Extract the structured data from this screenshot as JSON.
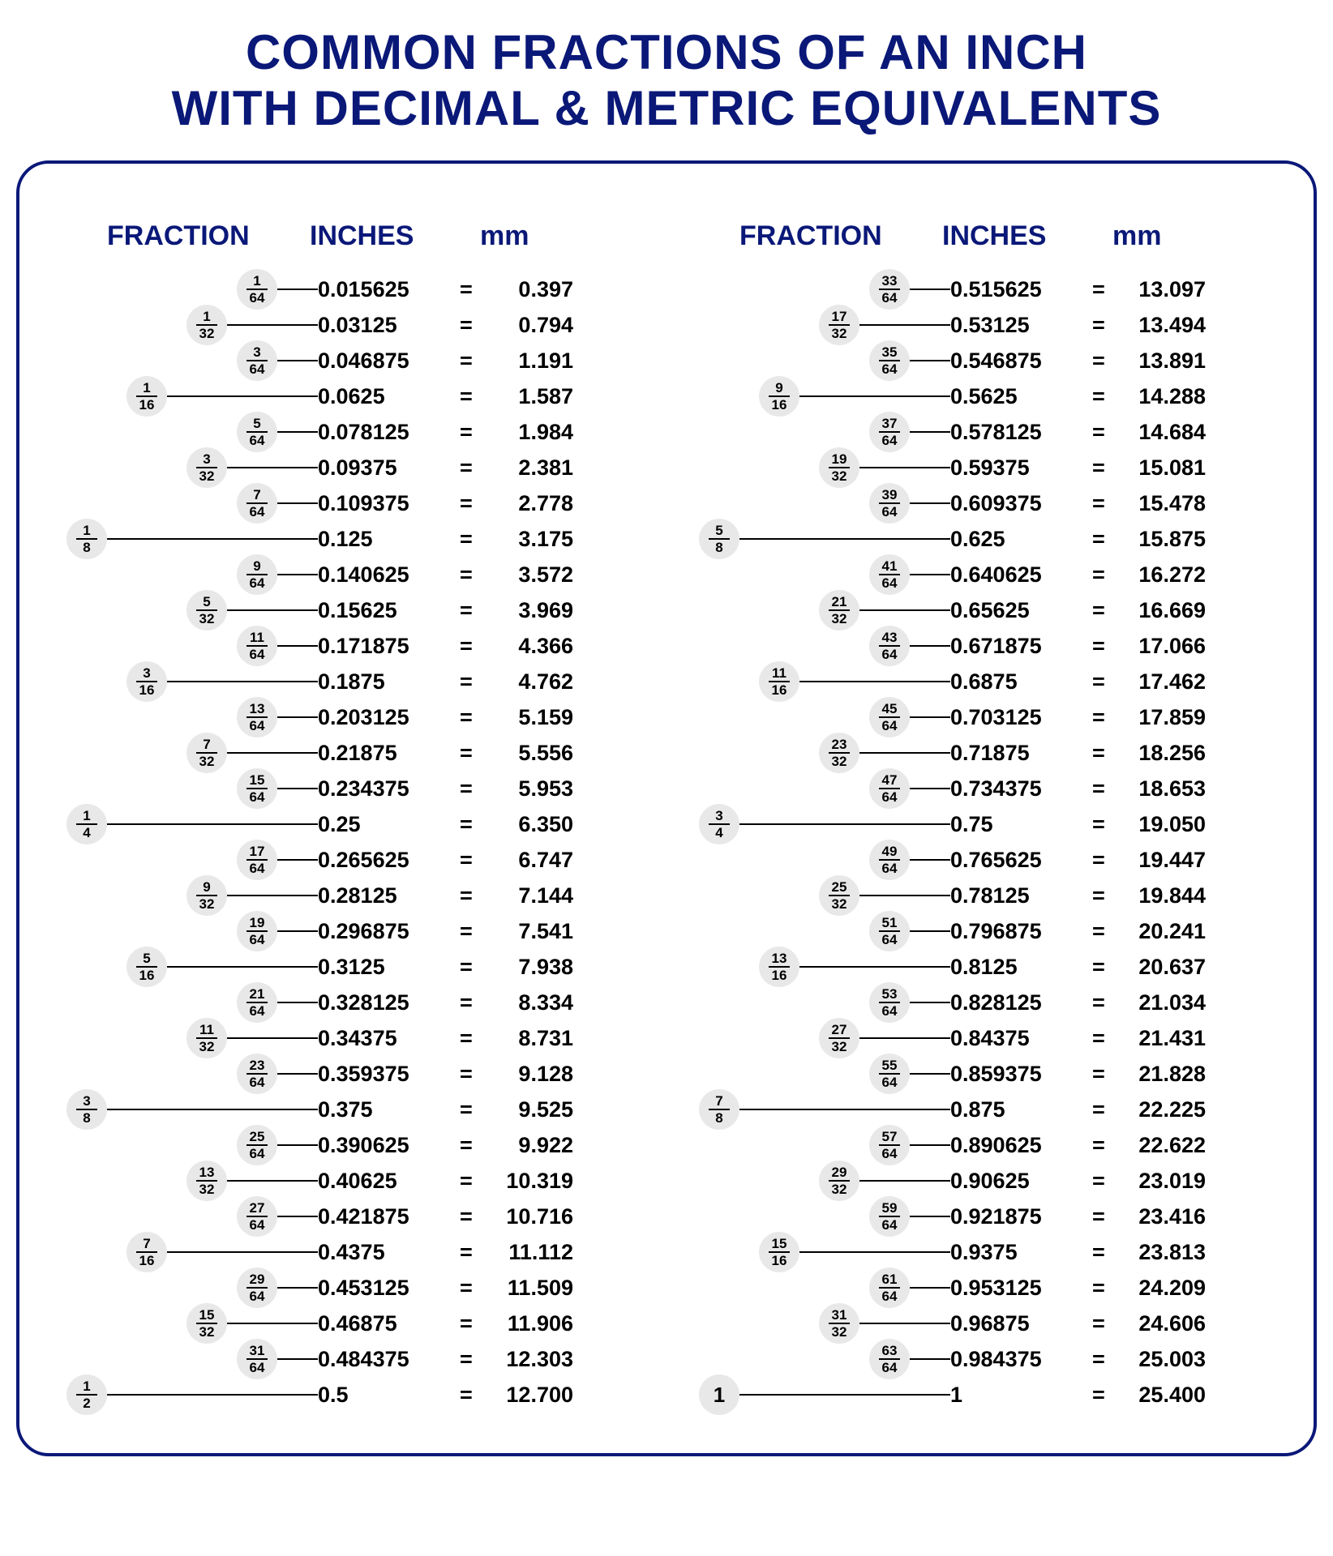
{
  "title_line1": "COMMON FRACTIONS OF AN INCH",
  "title_line2": "WITH DECIMAL & METRIC EQUIVALENTS",
  "headers": {
    "fraction": "FRACTION",
    "inches": "INCHES",
    "mm": "mm"
  },
  "colors": {
    "brand": "#0a1878",
    "pill_bg": "#e8e8e8",
    "text": "#000000",
    "bg": "#ffffff"
  },
  "columns": [
    {
      "rows": [
        {
          "p8": null,
          "p16": null,
          "p32": null,
          "p64": [
            1,
            64
          ],
          "inches": "0.015625",
          "mm": "0.397"
        },
        {
          "p8": null,
          "p16": null,
          "p32": [
            1,
            32
          ],
          "p64": null,
          "inches": "0.03125",
          "mm": "0.794"
        },
        {
          "p8": null,
          "p16": null,
          "p32": null,
          "p64": [
            3,
            64
          ],
          "inches": "0.046875",
          "mm": "1.191"
        },
        {
          "p8": null,
          "p16": [
            1,
            16
          ],
          "p32": null,
          "p64": null,
          "inches": "0.0625",
          "mm": "1.587"
        },
        {
          "p8": null,
          "p16": null,
          "p32": null,
          "p64": [
            5,
            64
          ],
          "inches": "0.078125",
          "mm": "1.984"
        },
        {
          "p8": null,
          "p16": null,
          "p32": [
            3,
            32
          ],
          "p64": null,
          "inches": "0.09375",
          "mm": "2.381"
        },
        {
          "p8": null,
          "p16": null,
          "p32": null,
          "p64": [
            7,
            64
          ],
          "inches": "0.109375",
          "mm": "2.778"
        },
        {
          "p8": [
            1,
            8
          ],
          "p16": null,
          "p32": null,
          "p64": null,
          "inches": "0.125",
          "mm": "3.175"
        },
        {
          "p8": null,
          "p16": null,
          "p32": null,
          "p64": [
            9,
            64
          ],
          "inches": "0.140625",
          "mm": "3.572"
        },
        {
          "p8": null,
          "p16": null,
          "p32": [
            5,
            32
          ],
          "p64": null,
          "inches": "0.15625",
          "mm": "3.969"
        },
        {
          "p8": null,
          "p16": null,
          "p32": null,
          "p64": [
            11,
            64
          ],
          "inches": "0.171875",
          "mm": "4.366"
        },
        {
          "p8": null,
          "p16": [
            3,
            16
          ],
          "p32": null,
          "p64": null,
          "inches": "0.1875",
          "mm": "4.762"
        },
        {
          "p8": null,
          "p16": null,
          "p32": null,
          "p64": [
            13,
            64
          ],
          "inches": "0.203125",
          "mm": "5.159"
        },
        {
          "p8": null,
          "p16": null,
          "p32": [
            7,
            32
          ],
          "p64": null,
          "inches": "0.21875",
          "mm": "5.556"
        },
        {
          "p8": null,
          "p16": null,
          "p32": null,
          "p64": [
            15,
            64
          ],
          "inches": "0.234375",
          "mm": "5.953"
        },
        {
          "p8": [
            1,
            4
          ],
          "p16": null,
          "p32": null,
          "p64": null,
          "inches": "0.25",
          "mm": "6.350"
        },
        {
          "p8": null,
          "p16": null,
          "p32": null,
          "p64": [
            17,
            64
          ],
          "inches": "0.265625",
          "mm": "6.747"
        },
        {
          "p8": null,
          "p16": null,
          "p32": [
            9,
            32
          ],
          "p64": null,
          "inches": "0.28125",
          "mm": "7.144"
        },
        {
          "p8": null,
          "p16": null,
          "p32": null,
          "p64": [
            19,
            64
          ],
          "inches": "0.296875",
          "mm": "7.541"
        },
        {
          "p8": null,
          "p16": [
            5,
            16
          ],
          "p32": null,
          "p64": null,
          "inches": "0.3125",
          "mm": "7.938"
        },
        {
          "p8": null,
          "p16": null,
          "p32": null,
          "p64": [
            21,
            64
          ],
          "inches": "0.328125",
          "mm": "8.334"
        },
        {
          "p8": null,
          "p16": null,
          "p32": [
            11,
            32
          ],
          "p64": null,
          "inches": "0.34375",
          "mm": "8.731"
        },
        {
          "p8": null,
          "p16": null,
          "p32": null,
          "p64": [
            23,
            64
          ],
          "inches": "0.359375",
          "mm": "9.128"
        },
        {
          "p8": [
            3,
            8
          ],
          "p16": null,
          "p32": null,
          "p64": null,
          "inches": "0.375",
          "mm": "9.525"
        },
        {
          "p8": null,
          "p16": null,
          "p32": null,
          "p64": [
            25,
            64
          ],
          "inches": "0.390625",
          "mm": "9.922"
        },
        {
          "p8": null,
          "p16": null,
          "p32": [
            13,
            32
          ],
          "p64": null,
          "inches": "0.40625",
          "mm": "10.319"
        },
        {
          "p8": null,
          "p16": null,
          "p32": null,
          "p64": [
            27,
            64
          ],
          "inches": "0.421875",
          "mm": "10.716"
        },
        {
          "p8": null,
          "p16": [
            7,
            16
          ],
          "p32": null,
          "p64": null,
          "inches": "0.4375",
          "mm": "11.112"
        },
        {
          "p8": null,
          "p16": null,
          "p32": null,
          "p64": [
            29,
            64
          ],
          "inches": "0.453125",
          "mm": "11.509"
        },
        {
          "p8": null,
          "p16": null,
          "p32": [
            15,
            32
          ],
          "p64": null,
          "inches": "0.46875",
          "mm": "11.906"
        },
        {
          "p8": null,
          "p16": null,
          "p32": null,
          "p64": [
            31,
            64
          ],
          "inches": "0.484375",
          "mm": "12.303"
        },
        {
          "p8": [
            1,
            2
          ],
          "p16": null,
          "p32": null,
          "p64": null,
          "inches": "0.5",
          "mm": "12.700"
        }
      ]
    },
    {
      "rows": [
        {
          "p8": null,
          "p16": null,
          "p32": null,
          "p64": [
            33,
            64
          ],
          "inches": "0.515625",
          "mm": "13.097"
        },
        {
          "p8": null,
          "p16": null,
          "p32": [
            17,
            32
          ],
          "p64": null,
          "inches": "0.53125",
          "mm": "13.494"
        },
        {
          "p8": null,
          "p16": null,
          "p32": null,
          "p64": [
            35,
            64
          ],
          "inches": "0.546875",
          "mm": "13.891"
        },
        {
          "p8": null,
          "p16": [
            9,
            16
          ],
          "p32": null,
          "p64": null,
          "inches": "0.5625",
          "mm": "14.288"
        },
        {
          "p8": null,
          "p16": null,
          "p32": null,
          "p64": [
            37,
            64
          ],
          "inches": "0.578125",
          "mm": "14.684"
        },
        {
          "p8": null,
          "p16": null,
          "p32": [
            19,
            32
          ],
          "p64": null,
          "inches": "0.59375",
          "mm": "15.081"
        },
        {
          "p8": null,
          "p16": null,
          "p32": null,
          "p64": [
            39,
            64
          ],
          "inches": "0.609375",
          "mm": "15.478"
        },
        {
          "p8": [
            5,
            8
          ],
          "p16": null,
          "p32": null,
          "p64": null,
          "inches": "0.625",
          "mm": "15.875"
        },
        {
          "p8": null,
          "p16": null,
          "p32": null,
          "p64": [
            41,
            64
          ],
          "inches": "0.640625",
          "mm": "16.272"
        },
        {
          "p8": null,
          "p16": null,
          "p32": [
            21,
            32
          ],
          "p64": null,
          "inches": "0.65625",
          "mm": "16.669"
        },
        {
          "p8": null,
          "p16": null,
          "p32": null,
          "p64": [
            43,
            64
          ],
          "inches": "0.671875",
          "mm": "17.066"
        },
        {
          "p8": null,
          "p16": [
            11,
            16
          ],
          "p32": null,
          "p64": null,
          "inches": "0.6875",
          "mm": "17.462"
        },
        {
          "p8": null,
          "p16": null,
          "p32": null,
          "p64": [
            45,
            64
          ],
          "inches": "0.703125",
          "mm": "17.859"
        },
        {
          "p8": null,
          "p16": null,
          "p32": [
            23,
            32
          ],
          "p64": null,
          "inches": "0.71875",
          "mm": "18.256"
        },
        {
          "p8": null,
          "p16": null,
          "p32": null,
          "p64": [
            47,
            64
          ],
          "inches": "0.734375",
          "mm": "18.653"
        },
        {
          "p8": [
            3,
            4
          ],
          "p16": null,
          "p32": null,
          "p64": null,
          "inches": "0.75",
          "mm": "19.050"
        },
        {
          "p8": null,
          "p16": null,
          "p32": null,
          "p64": [
            49,
            64
          ],
          "inches": "0.765625",
          "mm": "19.447"
        },
        {
          "p8": null,
          "p16": null,
          "p32": [
            25,
            32
          ],
          "p64": null,
          "inches": "0.78125",
          "mm": "19.844"
        },
        {
          "p8": null,
          "p16": null,
          "p32": null,
          "p64": [
            51,
            64
          ],
          "inches": "0.796875",
          "mm": "20.241"
        },
        {
          "p8": null,
          "p16": [
            13,
            16
          ],
          "p32": null,
          "p64": null,
          "inches": "0.8125",
          "mm": "20.637"
        },
        {
          "p8": null,
          "p16": null,
          "p32": null,
          "p64": [
            53,
            64
          ],
          "inches": "0.828125",
          "mm": "21.034"
        },
        {
          "p8": null,
          "p16": null,
          "p32": [
            27,
            32
          ],
          "p64": null,
          "inches": "0.84375",
          "mm": "21.431"
        },
        {
          "p8": null,
          "p16": null,
          "p32": null,
          "p64": [
            55,
            64
          ],
          "inches": "0.859375",
          "mm": "21.828"
        },
        {
          "p8": [
            7,
            8
          ],
          "p16": null,
          "p32": null,
          "p64": null,
          "inches": "0.875",
          "mm": "22.225"
        },
        {
          "p8": null,
          "p16": null,
          "p32": null,
          "p64": [
            57,
            64
          ],
          "inches": "0.890625",
          "mm": "22.622"
        },
        {
          "p8": null,
          "p16": null,
          "p32": [
            29,
            32
          ],
          "p64": null,
          "inches": "0.90625",
          "mm": "23.019"
        },
        {
          "p8": null,
          "p16": null,
          "p32": null,
          "p64": [
            59,
            64
          ],
          "inches": "0.921875",
          "mm": "23.416"
        },
        {
          "p8": null,
          "p16": [
            15,
            16
          ],
          "p32": null,
          "p64": null,
          "inches": "0.9375",
          "mm": "23.813"
        },
        {
          "p8": null,
          "p16": null,
          "p32": null,
          "p64": [
            61,
            64
          ],
          "inches": "0.953125",
          "mm": "24.209"
        },
        {
          "p8": null,
          "p16": null,
          "p32": [
            31,
            32
          ],
          "p64": null,
          "inches": "0.96875",
          "mm": "24.606"
        },
        {
          "p8": null,
          "p16": null,
          "p32": null,
          "p64": [
            63,
            64
          ],
          "inches": "0.984375",
          "mm": "25.003"
        },
        {
          "p8": [
            1,
            null
          ],
          "p16": null,
          "p32": null,
          "p64": null,
          "inches": "1",
          "mm": "25.400",
          "whole": true
        }
      ]
    }
  ]
}
